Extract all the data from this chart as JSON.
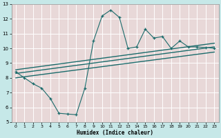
{
  "title": "",
  "xlabel": "Humidex (Indice chaleur)",
  "ylabel": "",
  "bg_color": "#c6e8e8",
  "grid_color": "#b0d8d8",
  "line_color": "#1a6b6b",
  "plot_bg": "#dff0f0",
  "xlim": [
    -0.5,
    23.5
  ],
  "ylim": [
    5,
    13
  ],
  "xticks": [
    0,
    1,
    2,
    3,
    4,
    5,
    6,
    7,
    8,
    9,
    10,
    11,
    12,
    13,
    14,
    15,
    16,
    17,
    18,
    19,
    20,
    21,
    22,
    23
  ],
  "yticks": [
    5,
    6,
    7,
    8,
    9,
    10,
    11,
    12,
    13
  ],
  "zigzag_x": [
    0,
    1,
    2,
    3,
    4,
    5,
    6,
    7,
    8,
    9,
    10,
    11,
    12,
    13,
    14,
    15,
    16,
    17,
    18,
    19,
    20,
    21,
    22,
    23
  ],
  "zigzag_y": [
    8.4,
    8.0,
    7.6,
    7.3,
    6.6,
    5.6,
    5.55,
    5.5,
    7.3,
    10.5,
    12.2,
    12.6,
    12.1,
    10.0,
    10.1,
    11.3,
    10.7,
    10.8,
    10.0,
    10.5,
    10.1,
    10.1,
    10.05,
    10.0
  ],
  "trend1_x": [
    0,
    23
  ],
  "trend1_y": [
    8.3,
    10.1
  ],
  "trend2_x": [
    0,
    23
  ],
  "trend2_y": [
    8.0,
    9.75
  ],
  "trend3_x": [
    0,
    23
  ],
  "trend3_y": [
    8.55,
    10.35
  ]
}
